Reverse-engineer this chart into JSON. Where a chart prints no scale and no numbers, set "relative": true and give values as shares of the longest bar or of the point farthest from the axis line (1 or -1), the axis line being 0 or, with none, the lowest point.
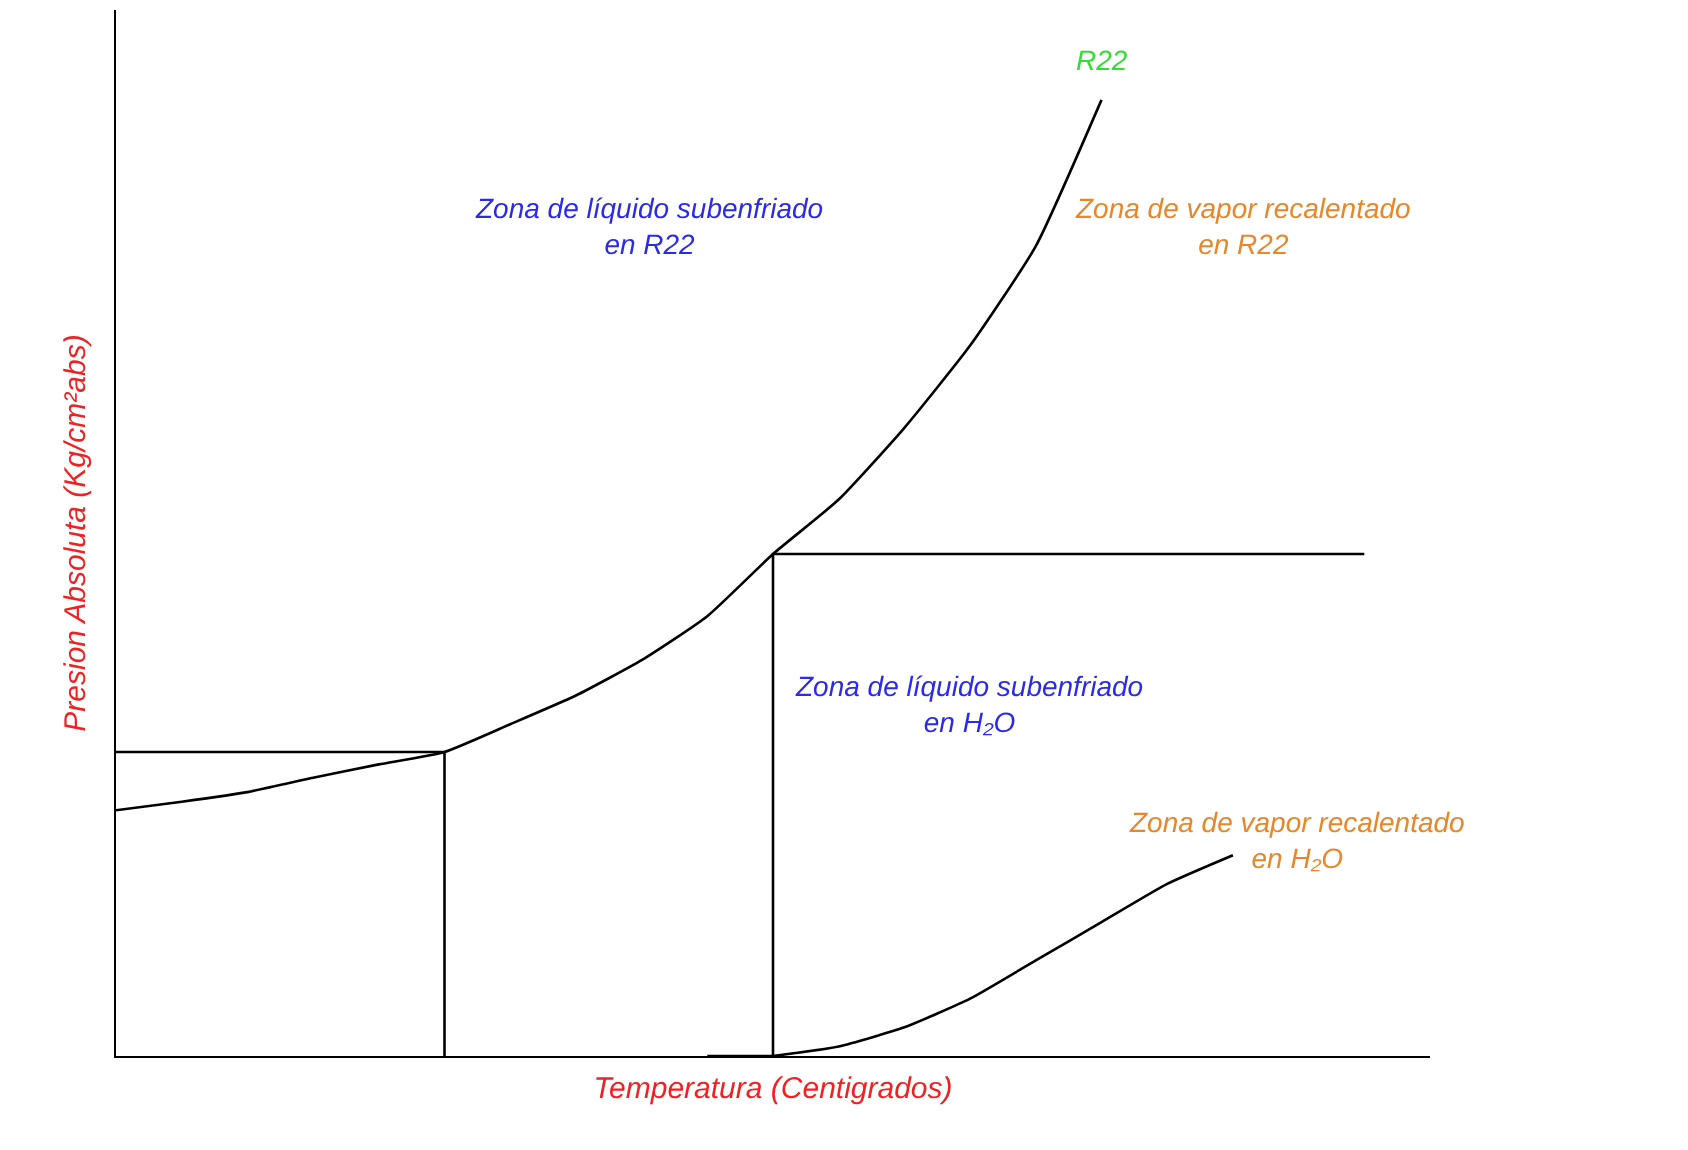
{
  "chart_data": {
    "type": "line",
    "relative": true,
    "xlabel": "Temperatura (Centigrados)",
    "ylabel": "Presion Absoluta (Kg/cm²abs)",
    "categories": [
      null,
      null,
      null,
      null,
      null,
      null,
      null,
      null,
      null,
      null,
      null,
      null,
      null,
      null,
      null,
      null,
      null,
      null,
      null,
      null,
      null
    ],
    "series": [
      {
        "name": "R22",
        "color": "#000000",
        "values": [
          0.257,
          0.266,
          0.276,
          0.291,
          0.305,
          0.318,
          0.347,
          0.377,
          0.414,
          0.46,
          0.525,
          0.582,
          0.657,
          0.743,
          0.847,
          1.0,
          null,
          null,
          null,
          null,
          null
        ]
      },
      {
        "color": "#000000",
        "values": [
          null,
          null,
          null,
          null,
          null,
          null,
          null,
          null,
          null,
          null,
          0,
          0.01,
          0.03,
          0.06,
          0.1,
          0.14,
          0.18,
          0.21,
          null,
          null,
          null
        ]
      },
      {
        "type": "step",
        "color": "#000000",
        "values": [
          0.318,
          0.318,
          0.318,
          0.318,
          0.318,
          0,
          null,
          null,
          null,
          null,
          null,
          null,
          null,
          null,
          null,
          null,
          null,
          null,
          null,
          null,
          null
        ]
      },
      {
        "type": "step",
        "color": "#000000",
        "values": [
          null,
          null,
          null,
          null,
          null,
          null,
          null,
          null,
          null,
          0,
          0.525,
          0.525,
          0.525,
          0.525,
          0.525,
          0.525,
          0.525,
          0.525,
          0.525,
          0.525,
          null
        ]
      }
    ],
    "annotations": [
      "Zona de líquido subenfriado\nen R22",
      "Zona de vapor recalentado\nen R22",
      "Zona de líquido subenfriado\nen H₂O",
      "Zona de vapor recalentado\nen H₂O"
    ],
    "legend": false
  }
}
